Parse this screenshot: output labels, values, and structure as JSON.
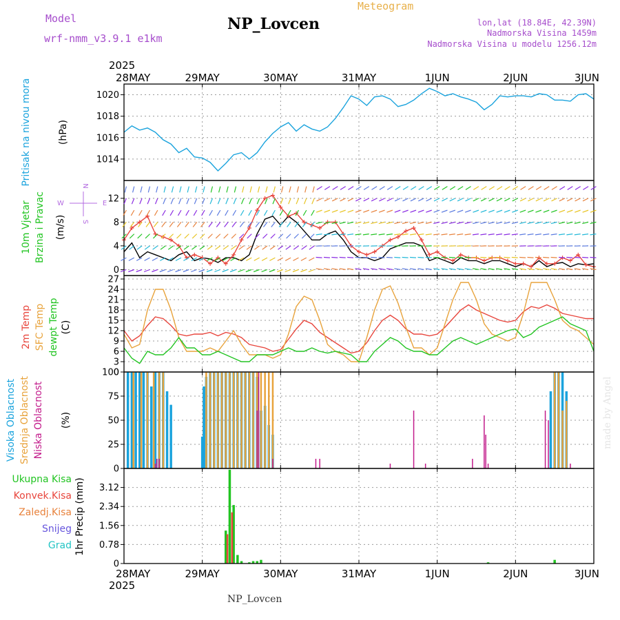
{
  "header": {
    "model_label": "Model",
    "model_name": "wrf-nmm_v3.9.1 e1km",
    "title": "NP_Lovcen",
    "meteogram_label": "Meteogram",
    "coords": "lon,lat (18.84E, 42.39N)",
    "elevation": "Nadmorska Visina 1459m",
    "model_elevation": "Nadmorska Visina u modelu 1256.12m",
    "bottom_title": "NP_Lovcen",
    "watermark": "made by Angel"
  },
  "colors": {
    "pressure": "#1aa3dd",
    "temp2m": "#e8453c",
    "sfc": "#e8a33c",
    "dewpt": "#22c422",
    "high_cloud": "#1aa3dd",
    "mid_cloud": "#e8a33c",
    "low_cloud": "#c21a8a",
    "total_precip": "#22c422",
    "conv_precip": "#e8453c",
    "grid_line": "#999999",
    "purple_text": "#a64dcc",
    "gold_text": "#e8b04a"
  },
  "chart_data": [
    {
      "id": "pressure",
      "type": "line",
      "ylabel_lines": [
        "Pritisak na nivou mora",
        "(hPa)"
      ],
      "ylim": [
        1012,
        1021
      ],
      "yticks": [
        1014,
        1016,
        1018,
        1020
      ],
      "grid": true,
      "series": [
        {
          "x": [
            0,
            0.1,
            0.2,
            0.3,
            0.4,
            0.5,
            0.6,
            0.7,
            0.8,
            0.9,
            1.0,
            1.1,
            1.2,
            1.3,
            1.4,
            1.5,
            1.6,
            1.7,
            1.8,
            1.9,
            2.0,
            2.1,
            2.2,
            2.3,
            2.4,
            2.5,
            2.6,
            2.7,
            2.8,
            2.9,
            3.0,
            3.1,
            3.2,
            3.3,
            3.4,
            3.5,
            3.6,
            3.7,
            3.8,
            3.9,
            4.0,
            4.1,
            4.2,
            4.3,
            4.4,
            4.5,
            4.6,
            4.7,
            4.8,
            4.9,
            5.0,
            5.1,
            5.2,
            5.3,
            5.4,
            5.5,
            5.6,
            5.7,
            5.8,
            5.9,
            6.0
          ],
          "y": [
            1016.5,
            1017.1,
            1016.7,
            1016.9,
            1016.5,
            1015.8,
            1015.4,
            1014.6,
            1015.0,
            1014.2,
            1014.1,
            1013.7,
            1012.9,
            1013.6,
            1014.4,
            1014.6,
            1014.0,
            1014.6,
            1015.6,
            1016.4,
            1017.0,
            1017.4,
            1016.6,
            1017.2,
            1016.8,
            1016.6,
            1017.0,
            1017.8,
            1018.8,
            1019.9,
            1019.6,
            1019.0,
            1019.8,
            1019.9,
            1019.6,
            1018.9,
            1019.1,
            1019.5,
            1020.1,
            1020.6,
            1020.3,
            1019.9,
            1020.1,
            1019.8,
            1019.6,
            1019.3,
            1018.6,
            1019.1,
            1019.9,
            1019.8,
            1019.9,
            1019.9,
            1019.8,
            1020.1,
            1020.0,
            1019.5,
            1019.5,
            1019.4,
            1020.0,
            1020.1,
            1019.6
          ]
        }
      ]
    },
    {
      "id": "wind",
      "type": "line",
      "ylabel_lines": [
        "10m Vjetar",
        "Brzina i Pravac",
        "(m/s)"
      ],
      "ylim": [
        -1,
        15
      ],
      "yticks": [
        0,
        4,
        8,
        12
      ],
      "grid": true,
      "compass": [
        "N",
        "W",
        "E",
        "S"
      ],
      "series": [
        {
          "name": "speed",
          "x": [
            0,
            0.1,
            0.2,
            0.3,
            0.4,
            0.5,
            0.6,
            0.7,
            0.8,
            0.9,
            1.0,
            1.1,
            1.2,
            1.3,
            1.4,
            1.5,
            1.6,
            1.7,
            1.8,
            1.9,
            2.0,
            2.1,
            2.2,
            2.3,
            2.4,
            2.5,
            2.6,
            2.7,
            2.8,
            2.9,
            3.0,
            3.1,
            3.2,
            3.3,
            3.4,
            3.5,
            3.6,
            3.7,
            3.8,
            3.9,
            4.0,
            4.1,
            4.2,
            4.3,
            4.4,
            4.5,
            4.6,
            4.7,
            4.8,
            4.9,
            5.0,
            5.1,
            5.2,
            5.3,
            5.4,
            5.5,
            5.6,
            5.7,
            5.8,
            5.9,
            6.0
          ],
          "y": [
            3,
            4.5,
            2,
            3,
            2.5,
            2,
            1.5,
            2.5,
            3,
            1.5,
            2,
            1.8,
            1.2,
            2,
            2,
            1.5,
            2.5,
            6,
            8.5,
            9,
            7.5,
            9,
            8,
            6.5,
            5,
            5,
            6,
            6.5,
            5,
            3,
            2,
            2,
            1.5,
            2,
            3.5,
            4,
            4.5,
            4.5,
            4,
            1.5,
            2,
            1.5,
            1,
            2,
            1.5,
            1.5,
            1,
            1.5,
            1.5,
            1,
            0.5,
            1,
            0.5,
            1.5,
            0.5,
            1,
            1.2,
            0.5,
            1,
            0.8,
            1
          ]
        },
        {
          "name": "gust",
          "x": [
            0,
            0.1,
            0.2,
            0.3,
            0.4,
            0.5,
            0.6,
            0.7,
            0.8,
            0.9,
            1.0,
            1.1,
            1.2,
            1.3,
            1.4,
            1.5,
            1.6,
            1.7,
            1.8,
            1.9,
            2.0,
            2.1,
            2.2,
            2.3,
            2.4,
            2.5,
            2.6,
            2.7,
            2.8,
            2.9,
            3.0,
            3.1,
            3.2,
            3.3,
            3.4,
            3.5,
            3.6,
            3.7,
            3.8,
            3.9,
            4.0,
            4.1,
            4.2,
            4.3,
            4.4,
            4.5,
            4.6,
            4.7,
            4.8,
            4.9,
            5.0,
            5.1,
            5.2,
            5.3,
            5.4,
            5.5,
            5.6,
            5.7,
            5.8,
            5.9,
            6.0
          ],
          "y": [
            5,
            7,
            8,
            9,
            6,
            5.5,
            5,
            4,
            2,
            2.5,
            2,
            1,
            2,
            1,
            2.5,
            5,
            7,
            10,
            12,
            12.5,
            10.5,
            9,
            9.5,
            8,
            7.5,
            7,
            8,
            8,
            6,
            4,
            3,
            2.5,
            3,
            4,
            5,
            5.5,
            6.5,
            7,
            5,
            2.5,
            3,
            2,
            1.5,
            2.5,
            2,
            2,
            1.5,
            2,
            2,
            1.5,
            1,
            1,
            0.5,
            2,
            1,
            1,
            2,
            1.5,
            2.5,
            0.8,
            0.5
          ]
        }
      ]
    },
    {
      "id": "temperature",
      "type": "line",
      "ylabel_lines": [
        "2m Temp",
        "SFC Temp",
        "dewpt Temp",
        "(C)"
      ],
      "ylim": [
        0,
        28
      ],
      "yticks": [
        0,
        3,
        6,
        9,
        12,
        15,
        18,
        21,
        24,
        27
      ],
      "grid": true,
      "series": [
        {
          "name": "2m Temp",
          "x": [
            0,
            0.1,
            0.2,
            0.3,
            0.4,
            0.5,
            0.6,
            0.7,
            0.8,
            0.9,
            1.0,
            1.1,
            1.2,
            1.3,
            1.4,
            1.5,
            1.6,
            1.7,
            1.8,
            1.9,
            2.0,
            2.1,
            2.2,
            2.3,
            2.4,
            2.5,
            2.6,
            2.7,
            2.8,
            2.9,
            3.0,
            3.1,
            3.2,
            3.3,
            3.4,
            3.5,
            3.6,
            3.7,
            3.8,
            3.9,
            4.0,
            4.1,
            4.2,
            4.3,
            4.4,
            4.5,
            4.6,
            4.7,
            4.8,
            4.9,
            5.0,
            5.1,
            5.2,
            5.3,
            5.4,
            5.5,
            5.6,
            5.7,
            5.8,
            5.9,
            6.0
          ],
          "y": [
            12,
            9,
            10.5,
            13.5,
            16,
            15.5,
            13.5,
            11,
            10.5,
            11,
            11,
            11.5,
            10.5,
            11.5,
            11,
            10,
            8,
            7.5,
            7,
            6,
            6.5,
            9.5,
            12.5,
            15,
            14,
            11.5,
            10,
            8.5,
            7,
            5.5,
            6,
            8.5,
            12,
            15,
            16.5,
            15,
            12.5,
            11,
            11,
            10.5,
            11,
            13,
            15.5,
            18,
            19.5,
            18,
            17,
            16,
            15,
            14.5,
            15,
            17.5,
            19,
            18.5,
            19.5,
            18.5,
            17,
            16.5,
            16,
            15.5,
            15.5
          ]
        },
        {
          "name": "SFC Temp",
          "x": [
            0,
            0.1,
            0.2,
            0.3,
            0.4,
            0.5,
            0.6,
            0.7,
            0.8,
            0.9,
            1.0,
            1.1,
            1.2,
            1.3,
            1.4,
            1.5,
            1.6,
            1.7,
            1.8,
            1.9,
            2.0,
            2.1,
            2.2,
            2.3,
            2.4,
            2.5,
            2.6,
            2.7,
            2.8,
            2.9,
            3.0,
            3.1,
            3.2,
            3.3,
            3.4,
            3.5,
            3.6,
            3.7,
            3.8,
            3.9,
            4.0,
            4.1,
            4.2,
            4.3,
            4.4,
            4.5,
            4.6,
            4.7,
            4.8,
            4.9,
            5.0,
            5.1,
            5.2,
            5.3,
            5.4,
            5.5,
            5.6,
            5.7,
            5.8,
            5.9,
            6.0
          ],
          "y": [
            11,
            7,
            8,
            18,
            24,
            24,
            18,
            10,
            6,
            6,
            6,
            7,
            6,
            9,
            12,
            8,
            5,
            5,
            5,
            4,
            5,
            11,
            19,
            22,
            21,
            15,
            8,
            6,
            5,
            3,
            3,
            10,
            18,
            24,
            25,
            20,
            13,
            7,
            7,
            5,
            7,
            14,
            21,
            26,
            26,
            21,
            14,
            11,
            10,
            9,
            10,
            17,
            26,
            26,
            26,
            21,
            15,
            13,
            12,
            10,
            8
          ]
        },
        {
          "name": "dewpt Temp",
          "x": [
            0,
            0.1,
            0.2,
            0.3,
            0.4,
            0.5,
            0.6,
            0.7,
            0.8,
            0.9,
            1.0,
            1.1,
            1.2,
            1.3,
            1.4,
            1.5,
            1.6,
            1.7,
            1.8,
            1.9,
            2.0,
            2.1,
            2.2,
            2.3,
            2.4,
            2.5,
            2.6,
            2.7,
            2.8,
            2.9,
            3.0,
            3.1,
            3.2,
            3.3,
            3.4,
            3.5,
            3.6,
            3.7,
            3.8,
            3.9,
            4.0,
            4.1,
            4.2,
            4.3,
            4.4,
            4.5,
            4.6,
            4.7,
            4.8,
            4.9,
            5.0,
            5.1,
            5.2,
            5.3,
            5.4,
            5.5,
            5.6,
            5.7,
            5.8,
            5.9,
            6.0
          ],
          "y": [
            7,
            4,
            2.5,
            6,
            5,
            5,
            7,
            10,
            7,
            7,
            5,
            5,
            6,
            5,
            4,
            3,
            3,
            5,
            5,
            5,
            6,
            7,
            6,
            6,
            7,
            6,
            5.5,
            6,
            5.5,
            5,
            3,
            3,
            6,
            8,
            10,
            9,
            7,
            6,
            6,
            5,
            5,
            7,
            9,
            10,
            9,
            8,
            9,
            10,
            11,
            12,
            12.5,
            10,
            11,
            13,
            14,
            15,
            16,
            14,
            13,
            12,
            6
          ]
        }
      ]
    },
    {
      "id": "cloud",
      "type": "bar",
      "ylabel_lines": [
        "Visoka Oblacnost",
        "Srednja Oblacnost",
        "Niska Oblacnost",
        "(%)"
      ],
      "ylim": [
        0,
        100
      ],
      "yticks": [
        0,
        25,
        50,
        75,
        100
      ],
      "grid": true,
      "series": [
        {
          "name": "Visoka Oblacnost",
          "x": [
            0.05,
            0.1,
            0.15,
            0.2,
            0.25,
            0.3,
            0.35,
            0.4,
            0.45,
            0.5,
            0.55,
            0.6,
            1.0,
            1.02,
            1.05,
            1.1,
            1.15,
            1.2,
            1.25,
            1.3,
            1.35,
            1.4,
            1.45,
            1.5,
            1.55,
            1.6,
            1.65,
            1.7,
            1.75,
            1.8,
            1.85,
            1.9,
            5.45,
            5.5,
            5.55,
            5.6,
            5.65
          ],
          "y": [
            100,
            100,
            100,
            100,
            100,
            100,
            85,
            100,
            100,
            100,
            80,
            66,
            33,
            85,
            95,
            100,
            100,
            100,
            100,
            100,
            100,
            100,
            100,
            100,
            100,
            100,
            100,
            95,
            60,
            65,
            45,
            35,
            80,
            100,
            100,
            100,
            80
          ]
        },
        {
          "name": "Srednja Oblacnost",
          "x": [
            0.12,
            0.22,
            0.3,
            0.38,
            0.45,
            0.5,
            1.05,
            1.1,
            1.15,
            1.2,
            1.25,
            1.3,
            1.35,
            1.4,
            1.45,
            1.5,
            1.55,
            1.6,
            1.65,
            1.7,
            1.75,
            1.8,
            1.85,
            1.9,
            5.5,
            5.55,
            5.6,
            5.65
          ],
          "y": [
            100,
            100,
            100,
            100,
            100,
            100,
            100,
            100,
            100,
            100,
            100,
            100,
            100,
            100,
            100,
            100,
            100,
            100,
            100,
            100,
            100,
            100,
            100,
            100,
            100,
            100,
            60,
            70
          ]
        },
        {
          "name": "Niska Oblacnost",
          "x": [
            0.4,
            0.42,
            0.45,
            1.7,
            1.72,
            1.9,
            2.45,
            2.5,
            3.4,
            3.7,
            3.85,
            4.45,
            4.6,
            4.62,
            4.65,
            5.38,
            5.42,
            5.7
          ],
          "y": [
            5,
            10,
            10,
            60,
            100,
            10,
            10,
            10,
            5,
            60,
            5,
            10,
            55,
            35,
            5,
            60,
            50,
            5
          ]
        }
      ]
    },
    {
      "id": "precip",
      "type": "bar",
      "ylabel_lines": [
        "1hr Precip (mm)"
      ],
      "legend": [
        "Ukupna Kisa",
        "Konvek.Kisa",
        "Zaledj.Kisa",
        "Snijeg",
        "Grad"
      ],
      "legend_colors": [
        "#22c422",
        "#e8453c",
        "#e8823c",
        "#6655dd",
        "#22c4c4"
      ],
      "ylim": [
        0,
        3.9
      ],
      "yticks": [
        0,
        0.78,
        1.56,
        2.34,
        3.12
      ],
      "ytick_labels": [
        "0",
        "0.78",
        "1.56",
        "2.34",
        "3.12"
      ],
      "grid": true,
      "series": [
        {
          "name": "Ukupna Kisa",
          "x": [
            1.3,
            1.35,
            1.4,
            1.45,
            1.5,
            1.6,
            1.65,
            1.7,
            1.75,
            4.65,
            5.5
          ],
          "y": [
            1.35,
            3.85,
            2.4,
            0.35,
            0.1,
            0.05,
            0.1,
            0.1,
            0.15,
            0.05,
            0.15
          ]
        },
        {
          "name": "Konvek.Kisa",
          "x": [
            1.32,
            1.38
          ],
          "y": [
            1.2,
            2.1
          ]
        }
      ]
    }
  ],
  "time_axis": {
    "year": "2025",
    "labels": [
      "28MAY",
      "29MAY",
      "30MAY",
      "31MAY",
      "1JUN",
      "2JUN",
      "3JUN"
    ]
  }
}
